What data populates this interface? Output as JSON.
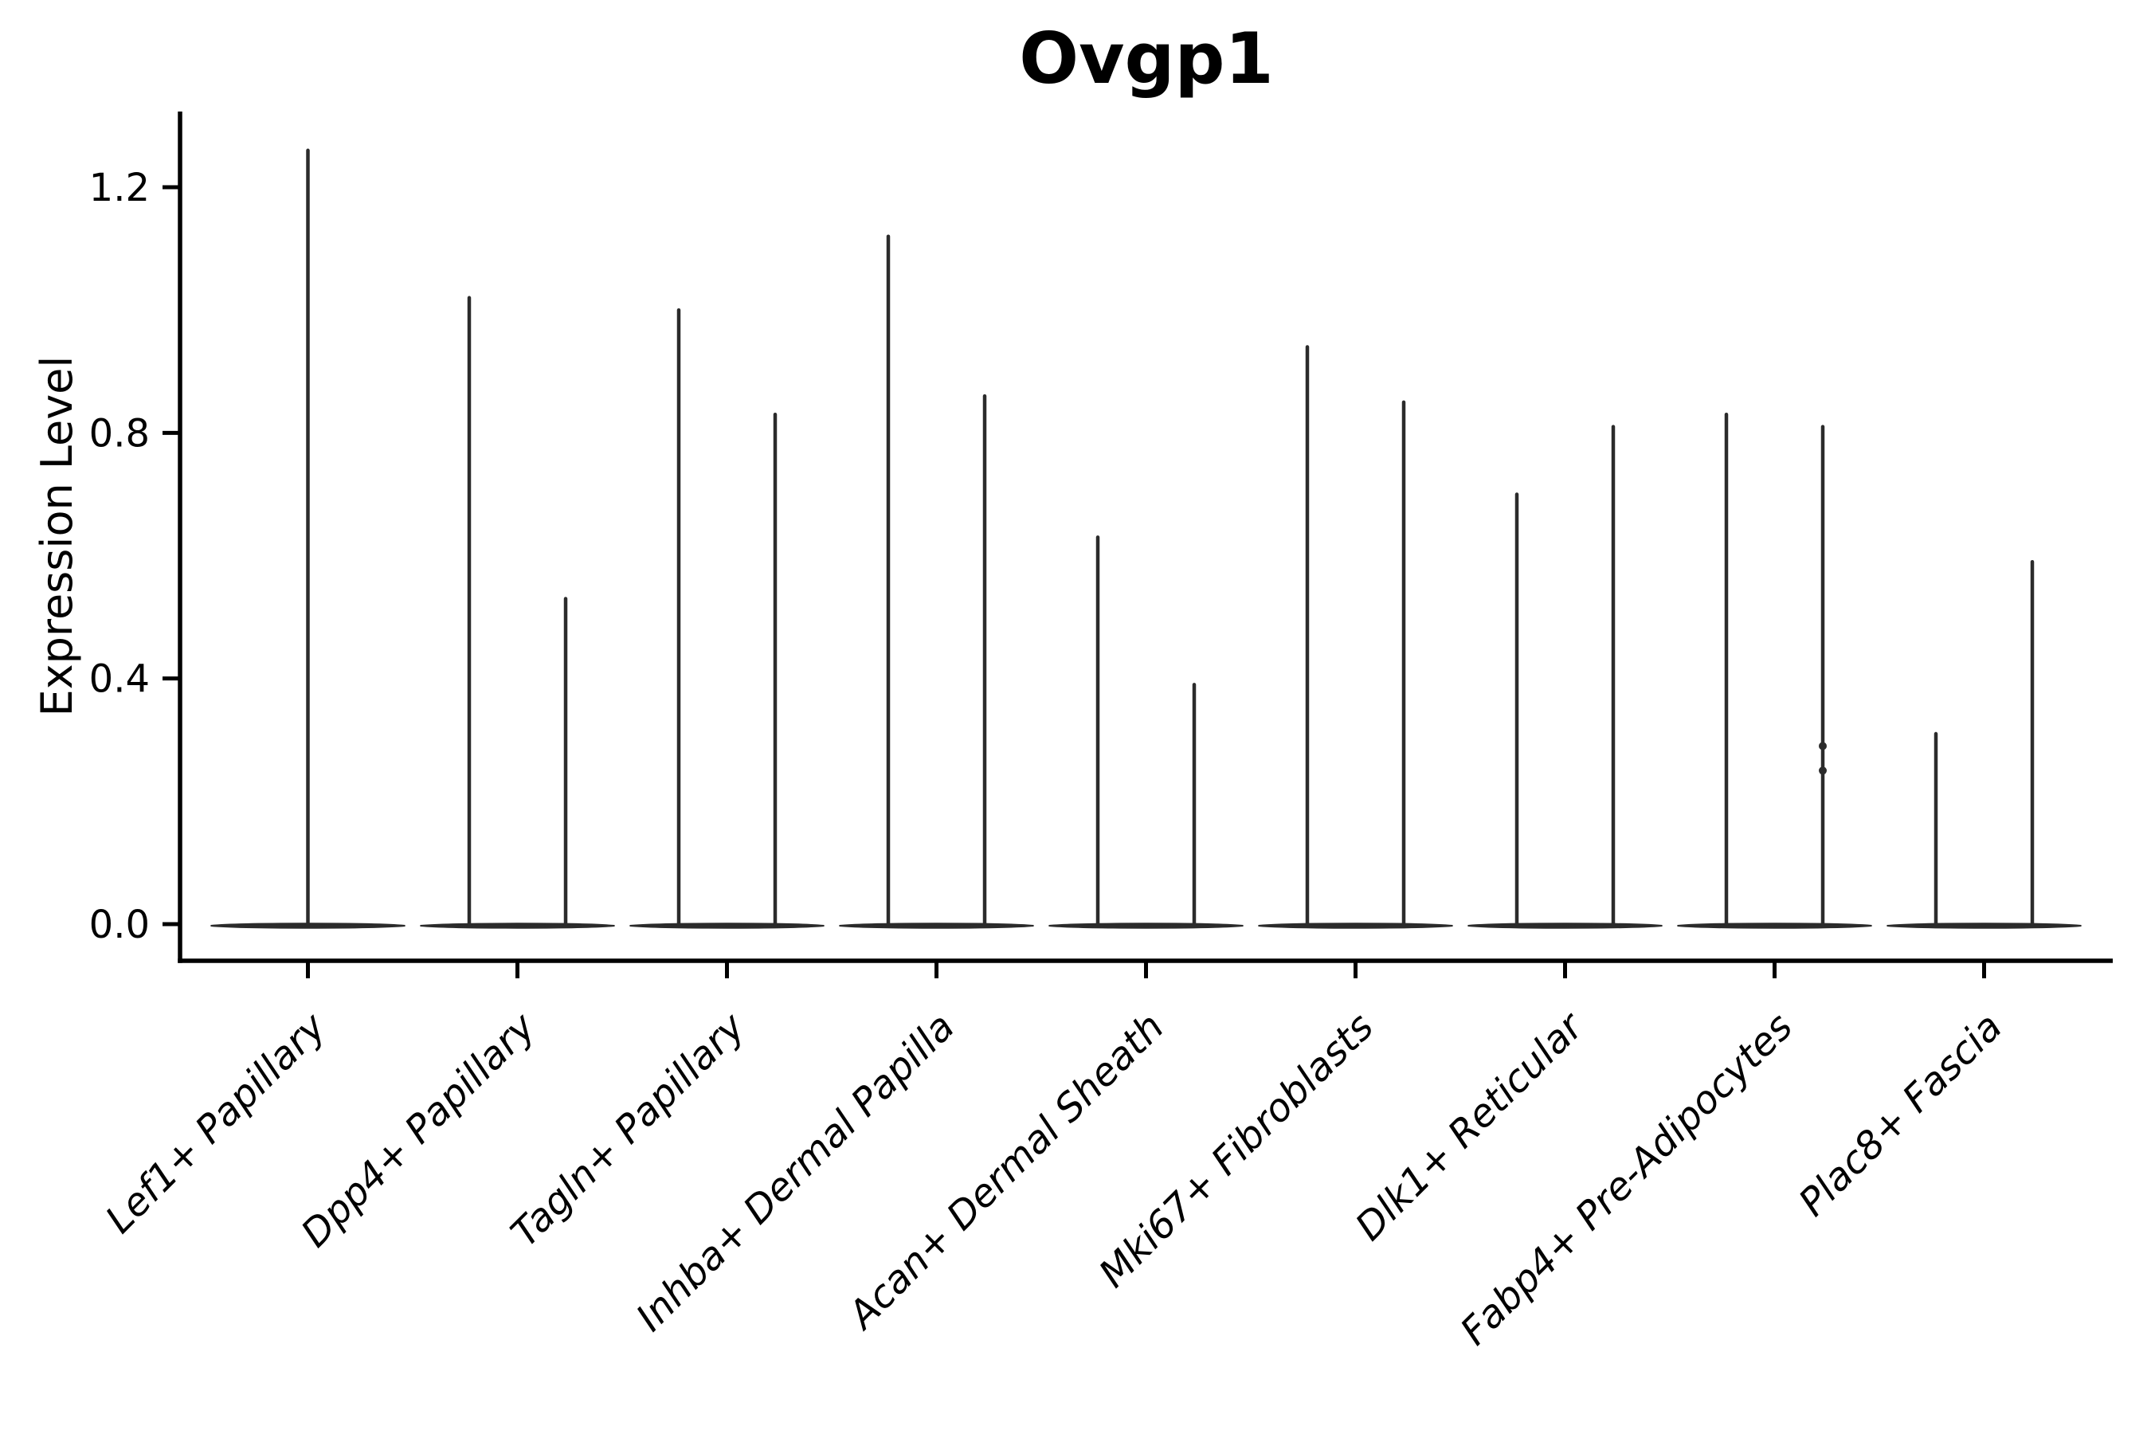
{
  "chart_data": {
    "type": "violin",
    "title": "Ovgp1",
    "ylabel": "Expression Level",
    "xlabel": "",
    "yticks": [
      "0.0",
      "0.4",
      "0.8",
      "1.2"
    ],
    "ytick_values": [
      0.0,
      0.4,
      0.8,
      1.2
    ],
    "ylim": [
      -0.06,
      1.32
    ],
    "grid": false,
    "legend": "none",
    "x_label_rotation_deg": 45,
    "categories": [
      "Lef1+ Papillary",
      "Dpp4+ Papillary",
      "Tagln+ Papillary",
      "Inhba+ Dermal Papilla",
      "Acan+ Dermal Sheath",
      "Mki67+ Fibroblasts",
      "Dlk1+ Reticular",
      "Fabp4+ Pre-Adipocytes",
      "Plac8+ Fascia"
    ],
    "violins": [
      {
        "category": "Lef1+ Papillary",
        "spike_maxima": [
          1.26
        ]
      },
      {
        "category": "Dpp4+ Papillary",
        "spike_maxima": [
          1.02,
          0.53
        ]
      },
      {
        "category": "Tagln+ Papillary",
        "spike_maxima": [
          1.0,
          0.83
        ]
      },
      {
        "category": "Inhba+ Dermal Papilla",
        "spike_maxima": [
          1.12,
          0.86
        ]
      },
      {
        "category": "Acan+ Dermal Sheath",
        "spike_maxima": [
          0.63,
          0.39
        ]
      },
      {
        "category": "Mki67+ Fibroblasts",
        "spike_maxima": [
          0.94,
          0.85
        ]
      },
      {
        "category": "Dlk1+ Reticular",
        "spike_maxima": [
          0.7,
          0.81
        ]
      },
      {
        "category": "Fabp4+ Pre-Adipocytes",
        "spike_maxima": [
          0.83,
          0.81
        ],
        "point_marks": {
          "spike_index": 1,
          "values": [
            0.29,
            0.25
          ]
        }
      },
      {
        "category": "Plac8+ Fascia",
        "spike_maxima": [
          0.31,
          0.59
        ]
      }
    ],
    "style": {
      "violin_color": "#2b2b2b",
      "axis_color": "#000000",
      "text_color": "#000000",
      "background": "#ffffff"
    }
  }
}
